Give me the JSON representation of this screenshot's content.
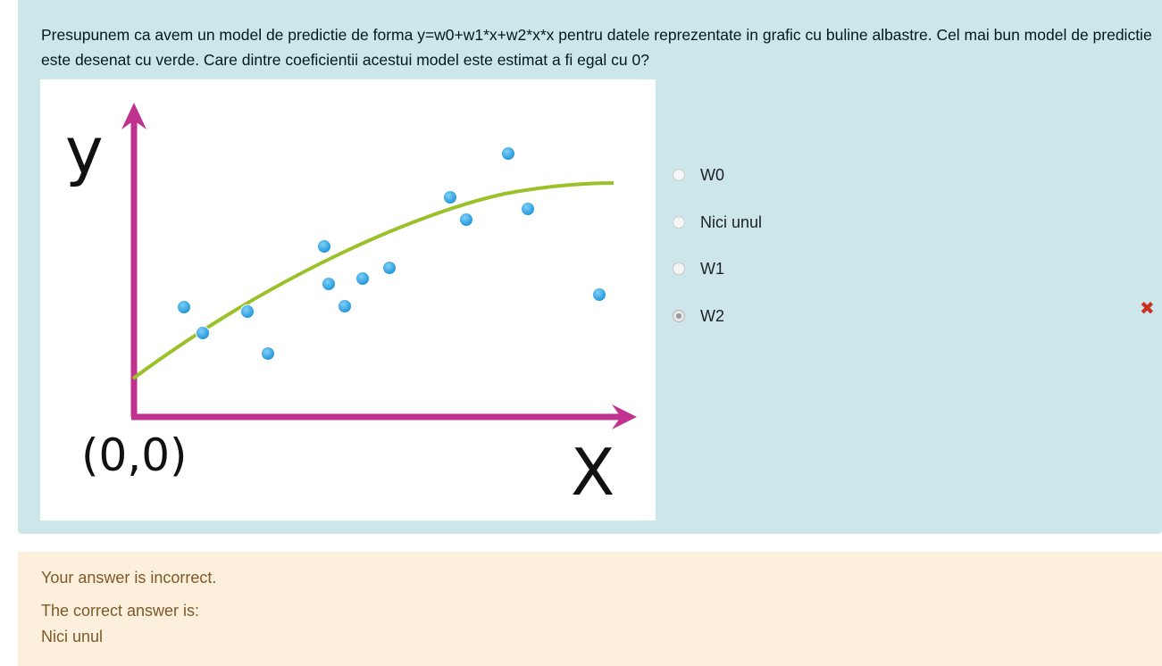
{
  "question": {
    "text": "Presupunem ca avem un model de predictie de forma y=w0+w1*x+w2*x*x pentru datele reprezentate in grafic cu buline albastre. Cel mai bun model de predictie este desenat cu verde. Care dintre coeficientii acestui model este estimat a fi egal cu 0?"
  },
  "figure": {
    "y_axis_label": "y",
    "x_axis_label": "X",
    "origin_label": "(0,0)",
    "axis_color": "#c0328f",
    "curve_color": "#9bc12a",
    "point_color": "#3aa8e0"
  },
  "answers": [
    {
      "label": "W0",
      "selected": false
    },
    {
      "label": "Nici unul",
      "selected": false
    },
    {
      "label": "W1",
      "selected": false
    },
    {
      "label": "W2",
      "selected": true,
      "incorrect_icon": "cross-icon"
    }
  ],
  "feedback": {
    "result": "Your answer is incorrect.",
    "correct_heading": "The correct answer is:",
    "correct_answer": "Nici unul"
  }
}
